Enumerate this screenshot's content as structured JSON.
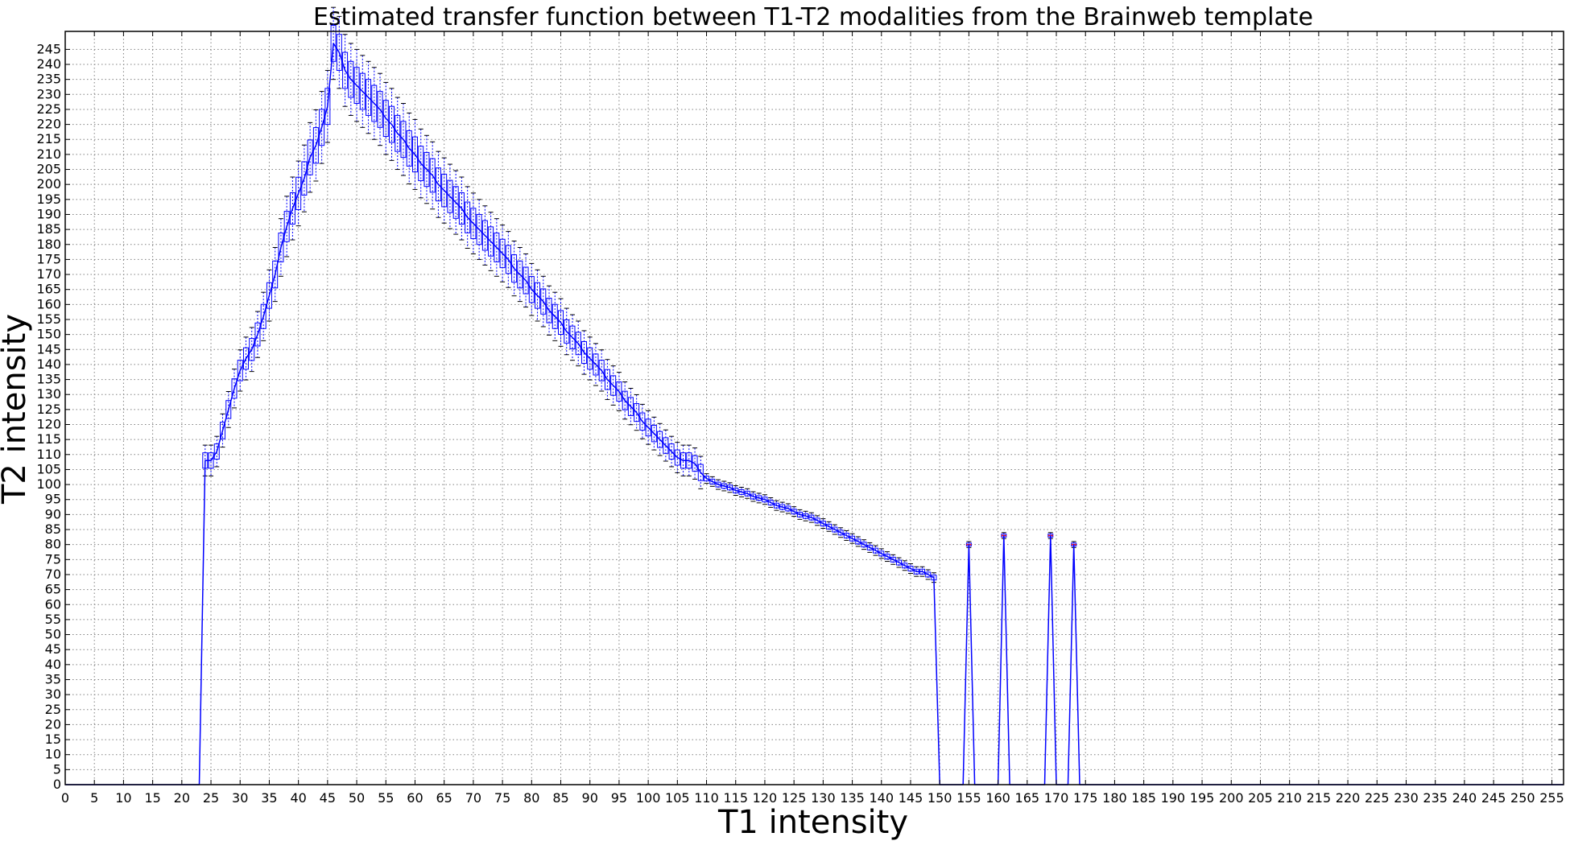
{
  "chart_data": {
    "type": "line",
    "title": "Estimated transfer function between T1-T2 modalities from the Brainweb template",
    "xlabel": "T1 intensity",
    "ylabel": "T2 intensity",
    "xlim": [
      0,
      257
    ],
    "ylim": [
      0,
      251
    ],
    "xticks": [
      0,
      5,
      10,
      15,
      20,
      25,
      30,
      35,
      40,
      45,
      50,
      55,
      60,
      65,
      70,
      75,
      80,
      85,
      90,
      95,
      100,
      105,
      110,
      115,
      120,
      125,
      130,
      135,
      140,
      145,
      150,
      155,
      160,
      165,
      170,
      175,
      180,
      185,
      190,
      195,
      200,
      205,
      210,
      215,
      220,
      225,
      230,
      235,
      240,
      245,
      250,
      255
    ],
    "yticks": [
      0,
      5,
      10,
      15,
      20,
      25,
      30,
      35,
      40,
      45,
      50,
      55,
      60,
      65,
      70,
      75,
      80,
      85,
      90,
      95,
      100,
      105,
      110,
      115,
      120,
      125,
      130,
      135,
      140,
      145,
      150,
      155,
      160,
      165,
      170,
      175,
      180,
      185,
      190,
      195,
      200,
      205,
      210,
      215,
      220,
      225,
      230,
      235,
      240,
      245
    ],
    "grid": true,
    "colors": {
      "line": "#0000ff",
      "whisker": "#000000",
      "flier": "#ff0000",
      "grid": "#808080"
    },
    "series": [
      {
        "values": [
          [
            0,
            0
          ],
          [
            1,
            0
          ],
          [
            2,
            0
          ],
          [
            3,
            0
          ],
          [
            4,
            0
          ],
          [
            5,
            0
          ],
          [
            6,
            0
          ],
          [
            7,
            0
          ],
          [
            8,
            0
          ],
          [
            9,
            0
          ],
          [
            10,
            0
          ],
          [
            11,
            0
          ],
          [
            12,
            0
          ],
          [
            13,
            0
          ],
          [
            14,
            0
          ],
          [
            15,
            0
          ],
          [
            16,
            0
          ],
          [
            17,
            0
          ],
          [
            18,
            0
          ],
          [
            19,
            0
          ],
          [
            20,
            0
          ],
          [
            21,
            0
          ],
          [
            22,
            0
          ],
          [
            23,
            0
          ],
          [
            24,
            108
          ],
          [
            25,
            108
          ],
          [
            26,
            111
          ],
          [
            27,
            118
          ],
          [
            28,
            125
          ],
          [
            29,
            132
          ],
          [
            30,
            138
          ],
          [
            31,
            142
          ],
          [
            32,
            145
          ],
          [
            33,
            150
          ],
          [
            34,
            156
          ],
          [
            35,
            163
          ],
          [
            36,
            170
          ],
          [
            37,
            179
          ],
          [
            38,
            186
          ],
          [
            39,
            192
          ],
          [
            40,
            197
          ],
          [
            41,
            202
          ],
          [
            42,
            209
          ],
          [
            43,
            213
          ],
          [
            44,
            219
          ],
          [
            45,
            226
          ],
          [
            46,
            247
          ],
          [
            47,
            244
          ],
          [
            48,
            238
          ],
          [
            49,
            235
          ],
          [
            50,
            233
          ],
          [
            51,
            231
          ],
          [
            52,
            229
          ],
          [
            53,
            227
          ],
          [
            54,
            225
          ],
          [
            55,
            222
          ],
          [
            56,
            220
          ],
          [
            57,
            217
          ],
          [
            58,
            215
          ],
          [
            59,
            212
          ],
          [
            60,
            210
          ],
          [
            61,
            207
          ],
          [
            62,
            205
          ],
          [
            63,
            203
          ],
          [
            64,
            200
          ],
          [
            65,
            198
          ],
          [
            66,
            196
          ],
          [
            67,
            194
          ],
          [
            68,
            192
          ],
          [
            69,
            189
          ],
          [
            70,
            187
          ],
          [
            71,
            185
          ],
          [
            72,
            183
          ],
          [
            73,
            181
          ],
          [
            74,
            179
          ],
          [
            75,
            177
          ],
          [
            76,
            175
          ],
          [
            77,
            172
          ],
          [
            78,
            170
          ],
          [
            79,
            168
          ],
          [
            80,
            165
          ],
          [
            81,
            163
          ],
          [
            82,
            161
          ],
          [
            83,
            158
          ],
          [
            84,
            156
          ],
          [
            85,
            154
          ],
          [
            86,
            151
          ],
          [
            87,
            149
          ],
          [
            88,
            147
          ],
          [
            89,
            144
          ],
          [
            90,
            142
          ],
          [
            91,
            140
          ],
          [
            92,
            138
          ],
          [
            93,
            135
          ],
          [
            94,
            133
          ],
          [
            95,
            131
          ],
          [
            96,
            128
          ],
          [
            97,
            126
          ],
          [
            98,
            124
          ],
          [
            99,
            121
          ],
          [
            100,
            119
          ],
          [
            101,
            117
          ],
          [
            102,
            115
          ],
          [
            103,
            113
          ],
          [
            104,
            111
          ],
          [
            105,
            109
          ],
          [
            106,
            108
          ],
          [
            107,
            108
          ],
          [
            108,
            107
          ],
          [
            109,
            104
          ],
          [
            110,
            102
          ],
          [
            111,
            101
          ],
          [
            112,
            100
          ],
          [
            113,
            99.5
          ],
          [
            114,
            99
          ],
          [
            115,
            98
          ],
          [
            116,
            97.5
          ],
          [
            117,
            97
          ],
          [
            118,
            96
          ],
          [
            119,
            95.5
          ],
          [
            120,
            95
          ],
          [
            121,
            94
          ],
          [
            122,
            93
          ],
          [
            123,
            92.5
          ],
          [
            124,
            92
          ],
          [
            125,
            91
          ],
          [
            126,
            90
          ],
          [
            127,
            89.5
          ],
          [
            128,
            89
          ],
          [
            129,
            88
          ],
          [
            130,
            87
          ],
          [
            131,
            86
          ],
          [
            132,
            85
          ],
          [
            133,
            84
          ],
          [
            134,
            83
          ],
          [
            135,
            82
          ],
          [
            136,
            81
          ],
          [
            137,
            80
          ],
          [
            138,
            79
          ],
          [
            139,
            78
          ],
          [
            140,
            77
          ],
          [
            141,
            76
          ],
          [
            142,
            75
          ],
          [
            143,
            74
          ],
          [
            144,
            73
          ],
          [
            145,
            72
          ],
          [
            146,
            71
          ],
          [
            147,
            71
          ],
          [
            148,
            70
          ],
          [
            149,
            69
          ],
          [
            150,
            0
          ],
          [
            151,
            0
          ],
          [
            152,
            0
          ],
          [
            153,
            0
          ],
          [
            154,
            0
          ],
          [
            155,
            80
          ],
          [
            156,
            0
          ],
          [
            157,
            0
          ],
          [
            158,
            0
          ],
          [
            159,
            0
          ],
          [
            160,
            0
          ],
          [
            161,
            83
          ],
          [
            162,
            0
          ],
          [
            163,
            0
          ],
          [
            164,
            0
          ],
          [
            165,
            0
          ],
          [
            166,
            0
          ],
          [
            167,
            0
          ],
          [
            168,
            0
          ],
          [
            169,
            83
          ],
          [
            170,
            0
          ],
          [
            171,
            0
          ],
          [
            172,
            0
          ],
          [
            173,
            80
          ],
          [
            174,
            0
          ],
          [
            175,
            0
          ],
          [
            176,
            0
          ],
          [
            177,
            0
          ],
          [
            178,
            0
          ],
          [
            179,
            0
          ],
          [
            180,
            0
          ],
          [
            190,
            0
          ],
          [
            200,
            0
          ],
          [
            210,
            0
          ],
          [
            220,
            0
          ],
          [
            230,
            0
          ],
          [
            240,
            0
          ],
          [
            250,
            0
          ],
          [
            255,
            0
          ],
          [
            257,
            0
          ]
        ]
      }
    ]
  }
}
